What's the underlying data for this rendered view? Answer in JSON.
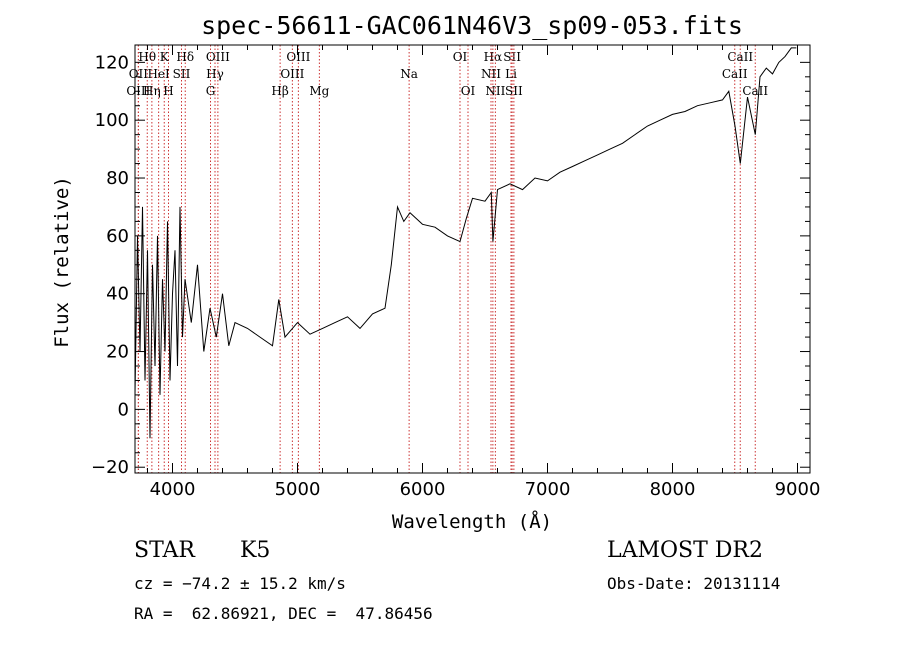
{
  "chart_data": {
    "type": "line",
    "title": "spec-56611-GAC061N46V3_sp09-053.fits",
    "xlabel": "Wavelength (Å)",
    "ylabel": "Flux (relative)",
    "xlim": [
      3700,
      9100
    ],
    "ylim": [
      -22,
      126
    ],
    "xticks": [
      4000,
      5000,
      6000,
      7000,
      8000,
      9000
    ],
    "yticks": [
      -20,
      0,
      20,
      40,
      60,
      80,
      100,
      120
    ],
    "grid": false,
    "line_color": "#000000",
    "marker_color": "#cc3333",
    "series": [
      {
        "x": [
          3700,
          3720,
          3740,
          3760,
          3780,
          3800,
          3820,
          3840,
          3860,
          3880,
          3900,
          3920,
          3940,
          3960,
          3980,
          4000,
          4020,
          4040,
          4060,
          4080,
          4100,
          4150,
          4200,
          4250,
          4300,
          4350,
          4400,
          4450,
          4500,
          4600,
          4700,
          4800,
          4850,
          4900,
          5000,
          5100,
          5200,
          5300,
          5400,
          5500,
          5600,
          5700,
          5750,
          5800,
          5850,
          5900,
          6000,
          6100,
          6200,
          6300,
          6350,
          6400,
          6500,
          6550,
          6563,
          6600,
          6700,
          6800,
          6900,
          7000,
          7100,
          7200,
          7300,
          7400,
          7500,
          7600,
          7700,
          7800,
          7900,
          8000,
          8100,
          8200,
          8300,
          8400,
          8450,
          8500,
          8542,
          8600,
          8662,
          8700,
          8750,
          8800,
          8850,
          8900,
          8950,
          8990
        ],
        "y": [
          5,
          60,
          20,
          70,
          10,
          55,
          -10,
          50,
          15,
          60,
          5,
          45,
          20,
          65,
          10,
          40,
          55,
          15,
          70,
          25,
          45,
          30,
          50,
          20,
          35,
          25,
          40,
          22,
          30,
          28,
          25,
          22,
          38,
          25,
          30,
          26,
          28,
          30,
          32,
          28,
          33,
          35,
          50,
          70,
          65,
          68,
          64,
          63,
          60,
          58,
          66,
          73,
          72,
          75,
          58,
          76,
          78,
          76,
          80,
          79,
          82,
          84,
          86,
          88,
          90,
          92,
          95,
          98,
          100,
          102,
          103,
          105,
          106,
          107,
          110,
          98,
          85,
          108,
          95,
          115,
          118,
          116,
          120,
          122,
          125,
          125
        ]
      }
    ],
    "lines": [
      {
        "name": "Hθ",
        "x": 3798,
        "pos": "top",
        "row": 1
      },
      {
        "name": "OII",
        "x": 3727,
        "pos": "top",
        "row": 2
      },
      {
        "name": "OIII",
        "x": 3727,
        "pos": "top",
        "row": 3
      },
      {
        "name": "K",
        "x": 3934,
        "pos": "top",
        "row": 1
      },
      {
        "name": "HeI",
        "x": 3889,
        "pos": "top",
        "row": 2
      },
      {
        "name": "Hη",
        "x": 3835,
        "pos": "top",
        "row": 3
      },
      {
        "name": "Hδ",
        "x": 4102,
        "pos": "top",
        "row": 1
      },
      {
        "name": "SII",
        "x": 4072,
        "pos": "top",
        "row": 2
      },
      {
        "name": "H",
        "x": 3968,
        "pos": "top",
        "row": 3
      },
      {
        "name": "OIII",
        "x": 4363,
        "pos": "top",
        "row": 1
      },
      {
        "name": "Hγ",
        "x": 4340,
        "pos": "top",
        "row": 2
      },
      {
        "name": "G",
        "x": 4304,
        "pos": "top",
        "row": 3
      },
      {
        "name": "OIII",
        "x": 5007,
        "pos": "top",
        "row": 1
      },
      {
        "name": "OIII",
        "x": 4959,
        "pos": "top",
        "row": 2
      },
      {
        "name": "Hβ",
        "x": 4861,
        "pos": "top",
        "row": 3
      },
      {
        "name": "Mg",
        "x": 5175,
        "pos": "top",
        "row": 3
      },
      {
        "name": "Na",
        "x": 5893,
        "pos": "top",
        "row": 2
      },
      {
        "name": "OI",
        "x": 6300,
        "pos": "top",
        "row": 1
      },
      {
        "name": "OI",
        "x": 6364,
        "pos": "top",
        "row": 3
      },
      {
        "name": "Hα",
        "x": 6563,
        "pos": "top",
        "row": 1
      },
      {
        "name": "NII",
        "x": 6548,
        "pos": "top",
        "row": 2
      },
      {
        "name": "NII",
        "x": 6583,
        "pos": "top",
        "row": 3
      },
      {
        "name": "SII",
        "x": 6717,
        "pos": "top",
        "row": 1
      },
      {
        "name": "Li",
        "x": 6708,
        "pos": "top",
        "row": 2
      },
      {
        "name": "SII",
        "x": 6731,
        "pos": "top",
        "row": 3
      },
      {
        "name": "CaII",
        "x": 8542,
        "pos": "top",
        "row": 1
      },
      {
        "name": "CaII",
        "x": 8498,
        "pos": "top",
        "row": 2
      },
      {
        "name": "CaII",
        "x": 8662,
        "pos": "top",
        "row": 3
      }
    ]
  },
  "info": {
    "class": "STAR",
    "subclass": "K5",
    "cz": "cz = −74.2 ± 15.2 km/s",
    "radec": "RA =  62.86921, DEC =  47.86456",
    "survey": "LAMOST DR2",
    "obsdate": "Obs-Date: 20131114"
  }
}
